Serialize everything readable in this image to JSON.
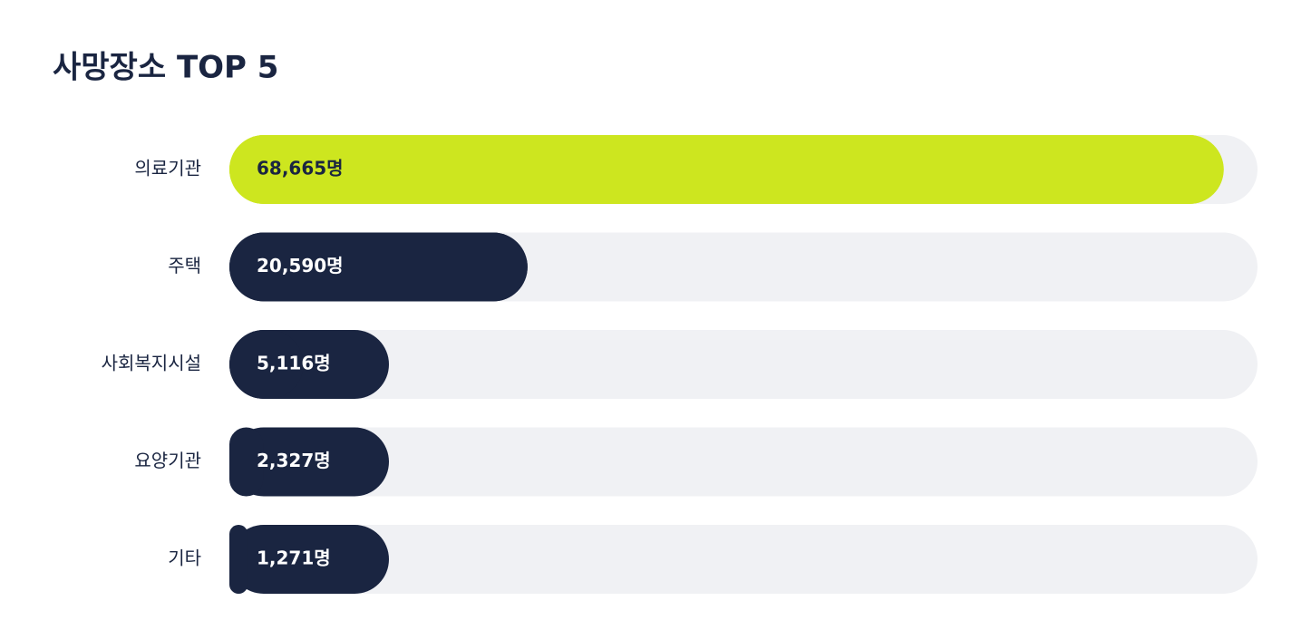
{
  "chart_data": {
    "type": "bar",
    "orientation": "horizontal",
    "title": "사망장소 TOP 5",
    "categories": [
      "의료기관",
      "주택",
      "사회복지시설",
      "요양기관",
      "기타"
    ],
    "values": [
      68665,
      20590,
      5116,
      2327,
      1271
    ],
    "value_labels": [
      "68,665명",
      "20,590명",
      "5,116명",
      "2,327명",
      "1,271명"
    ],
    "colors": [
      "#cde61f",
      "#1a2541",
      "#1a2541",
      "#1a2541",
      "#1a2541"
    ],
    "xlim": [
      0,
      71000
    ]
  }
}
